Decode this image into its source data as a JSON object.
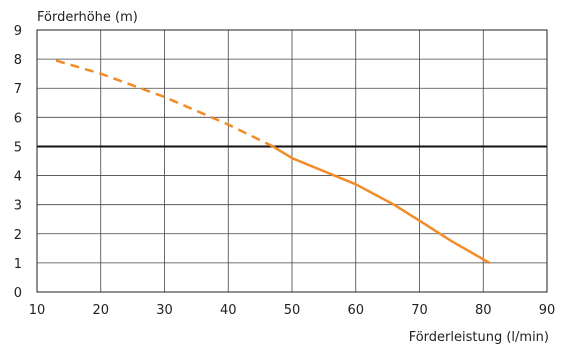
{
  "chart_data": {
    "type": "line",
    "ylabel": "Förderhöhe (m)",
    "xlabel": "Förderleistung (l/min)",
    "xlim": [
      10,
      90
    ],
    "ylim": [
      0,
      9
    ],
    "x_ticks": [
      10,
      20,
      30,
      40,
      50,
      60,
      70,
      80,
      90
    ],
    "y_ticks": [
      0,
      1,
      2,
      3,
      4,
      5,
      6,
      7,
      8,
      9
    ],
    "grid": true,
    "series": [
      {
        "style": "dashed",
        "color": "#f28c28",
        "points": [
          [
            13,
            7.95
          ],
          [
            20,
            7.5
          ],
          [
            30,
            6.7
          ],
          [
            40,
            5.75
          ],
          [
            47,
            5.0
          ]
        ]
      },
      {
        "style": "solid",
        "color": "#f28c28",
        "points": [
          [
            47,
            5.0
          ],
          [
            50,
            4.6
          ],
          [
            60,
            3.7
          ],
          [
            66,
            3.0
          ],
          [
            70,
            2.45
          ],
          [
            75,
            1.75
          ],
          [
            81,
            1.0
          ]
        ]
      }
    ],
    "reference_lines": [
      {
        "axis": "y",
        "value": 5,
        "color": "#111111"
      }
    ]
  }
}
